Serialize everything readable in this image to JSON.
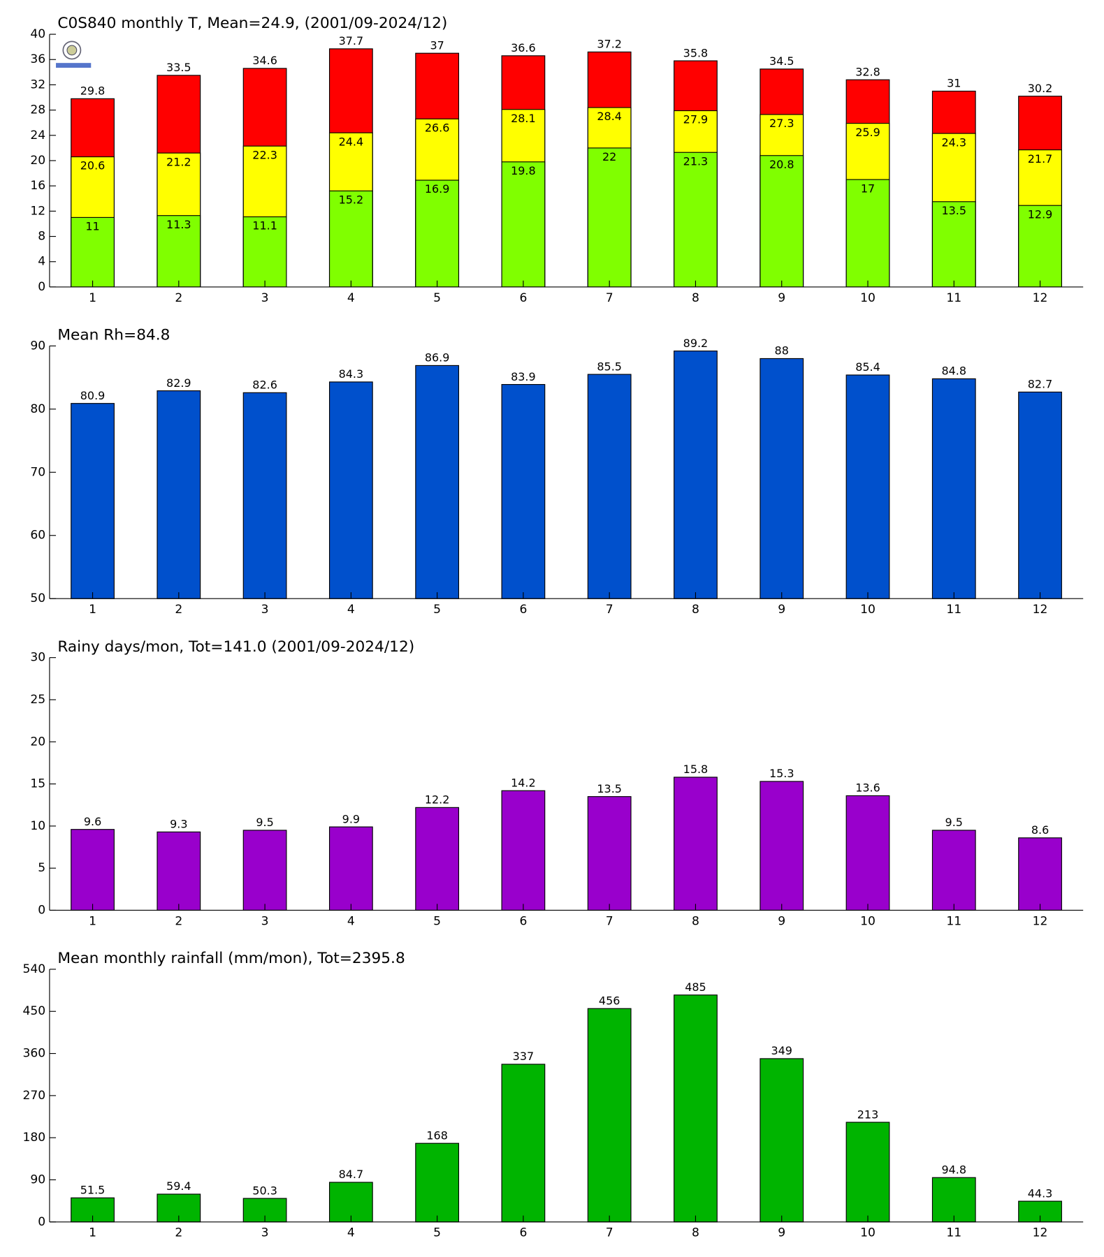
{
  "chart_data": [
    {
      "type": "bar",
      "title": "C0S840 monthly T, Mean=24.9, (2001/09-2024/12)",
      "categories": [
        "1",
        "2",
        "3",
        "4",
        "5",
        "6",
        "7",
        "8",
        "9",
        "10",
        "11",
        "12"
      ],
      "series": [
        {
          "color": "#80ff00",
          "values": [
            11,
            11.3,
            11.1,
            15.2,
            16.9,
            19.8,
            22,
            21.3,
            20.8,
            17,
            13.5,
            12.9
          ]
        },
        {
          "color": "#ffff00",
          "values": [
            20.6,
            21.2,
            22.3,
            24.4,
            26.6,
            28.1,
            28.4,
            27.9,
            27.3,
            25.9,
            24.3,
            21.7
          ]
        },
        {
          "color": "#ff0000",
          "values": [
            29.8,
            33.5,
            34.6,
            37.7,
            37,
            36.6,
            37.2,
            35.8,
            34.5,
            32.8,
            31,
            30.2
          ]
        }
      ],
      "ylim": [
        0,
        40
      ],
      "yticks": [
        0,
        4,
        8,
        12,
        16,
        20,
        24,
        28,
        32,
        36,
        40
      ]
    },
    {
      "type": "bar",
      "title": "Mean Rh=84.8",
      "categories": [
        "1",
        "2",
        "3",
        "4",
        "5",
        "6",
        "7",
        "8",
        "9",
        "10",
        "11",
        "12"
      ],
      "series": [
        {
          "color": "#0050cc",
          "values": [
            80.9,
            82.9,
            82.6,
            84.3,
            86.9,
            83.9,
            85.5,
            89.2,
            88,
            85.4,
            84.8,
            82.7
          ]
        }
      ],
      "ylim": [
        50,
        90
      ],
      "yticks": [
        50,
        60,
        70,
        80,
        90
      ]
    },
    {
      "type": "bar",
      "title": "Rainy days/mon, Tot=141.0 (2001/09-2024/12)",
      "categories": [
        "1",
        "2",
        "3",
        "4",
        "5",
        "6",
        "7",
        "8",
        "9",
        "10",
        "11",
        "12"
      ],
      "series": [
        {
          "color": "#9900cc",
          "values": [
            9.6,
            9.3,
            9.5,
            9.9,
            12.2,
            14.2,
            13.5,
            15.8,
            15.3,
            13.6,
            9.5,
            8.6
          ]
        }
      ],
      "ylim": [
        0,
        30
      ],
      "yticks": [
        0,
        5,
        10,
        15,
        20,
        25,
        30
      ]
    },
    {
      "type": "bar",
      "title": "Mean monthly rainfall (mm/mon), Tot=2395.8",
      "categories": [
        "1",
        "2",
        "3",
        "4",
        "5",
        "6",
        "7",
        "8",
        "9",
        "10",
        "11",
        "12"
      ],
      "series": [
        {
          "color": "#00b400",
          "values": [
            51.5,
            59.4,
            50.3,
            84.7,
            168,
            337,
            456,
            485,
            349,
            213,
            94.8,
            44.3
          ]
        }
      ],
      "ylim": [
        0,
        540
      ],
      "yticks": [
        0,
        90,
        180,
        270,
        360,
        450,
        540
      ]
    }
  ]
}
